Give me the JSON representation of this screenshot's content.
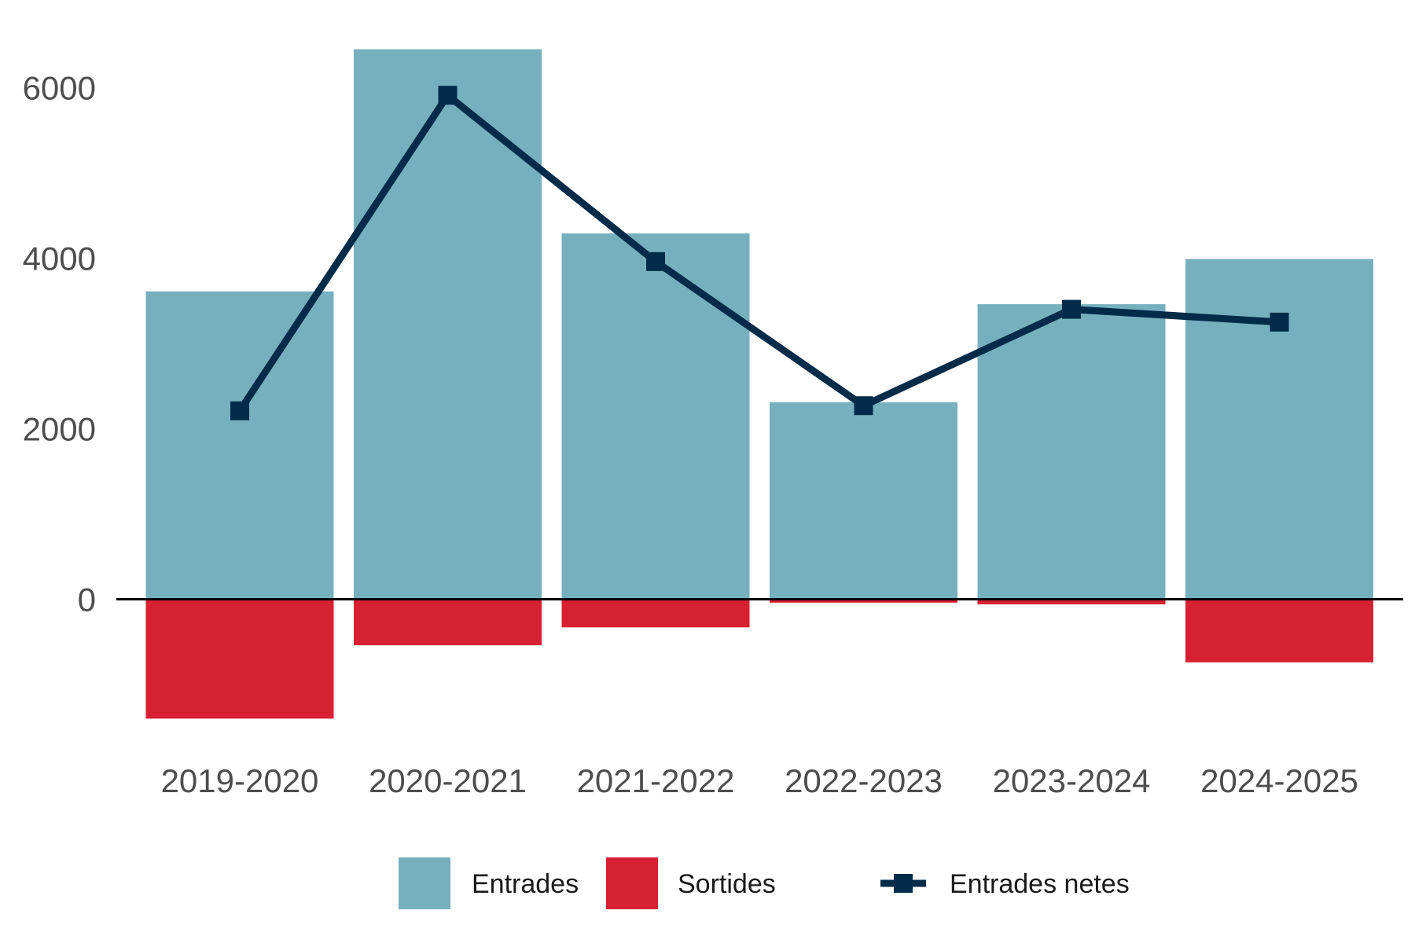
{
  "chart_data": {
    "type": "bar",
    "categories": [
      "2019-2020",
      "2020-2021",
      "2021-2022",
      "2022-2023",
      "2023-2024",
      "2024-2025"
    ],
    "series": [
      {
        "name": "Entrades",
        "kind": "bar",
        "color": "#76b0be",
        "values": [
          3610,
          6450,
          4290,
          2310,
          3460,
          3990
        ]
      },
      {
        "name": "Sortides",
        "kind": "bar",
        "color": "#d72031",
        "values": [
          -1400,
          -540,
          -330,
          -40,
          -60,
          -740
        ]
      },
      {
        "name": "Entrades netes",
        "kind": "line",
        "marker": "square",
        "color": "#002b49",
        "values": [
          2210,
          5910,
          3960,
          2270,
          3400,
          3250
        ]
      }
    ],
    "y_ticks": [
      0,
      2000,
      4000,
      6000
    ],
    "y_tick_labels": [
      "0",
      "2000",
      "4000",
      "6000"
    ],
    "ylim": [
      -1800,
      6800
    ],
    "grid": false,
    "zero_line": true,
    "legend_position": "bottom"
  }
}
